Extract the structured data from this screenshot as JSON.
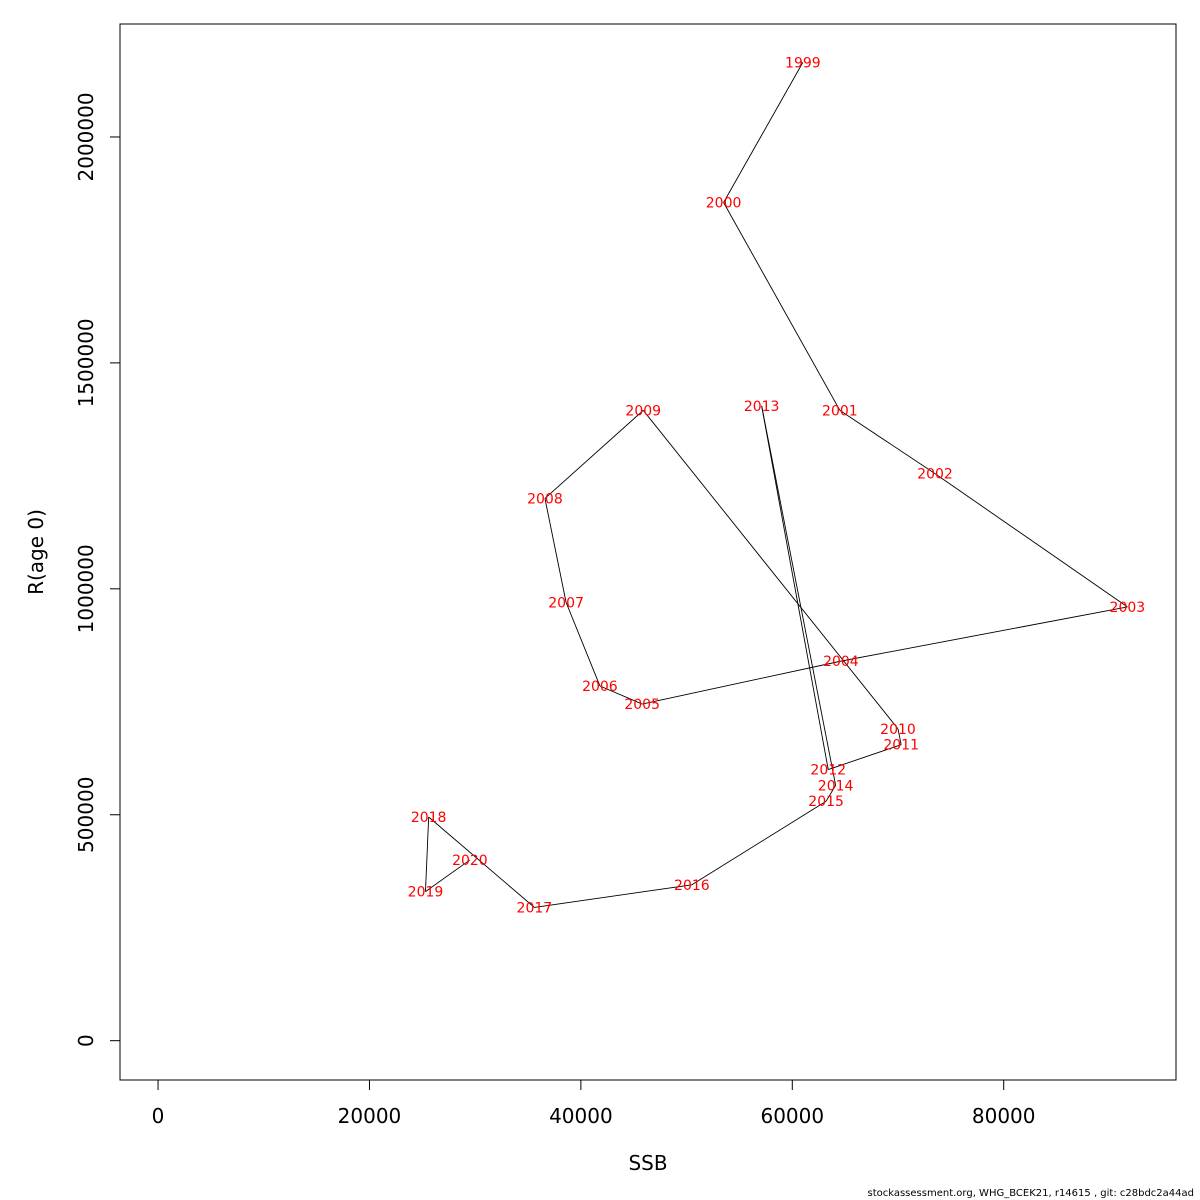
{
  "chart_data": {
    "type": "line",
    "xlabel": "SSB",
    "ylabel": "R(age 0)",
    "xlim": [
      -3600,
      96300
    ],
    "ylim": [
      -87000,
      2250000
    ],
    "x_ticks": [
      0,
      20000,
      40000,
      60000,
      80000
    ],
    "x_tick_labels": [
      "0",
      "20000",
      "40000",
      "60000",
      "80000"
    ],
    "y_ticks": [
      0,
      500000,
      1000000,
      1500000,
      2000000
    ],
    "y_tick_labels": [
      "0",
      "500000",
      "1000000",
      "1500000",
      "2000000"
    ],
    "grid": false,
    "line_color": "#000000",
    "label_color": "#ff0000",
    "points": [
      {
        "label": "1999",
        "x": 61000,
        "y": 2165000
      },
      {
        "label": "2000",
        "x": 53500,
        "y": 1855000
      },
      {
        "label": "2001",
        "x": 64500,
        "y": 1395000
      },
      {
        "label": "2002",
        "x": 73500,
        "y": 1255000
      },
      {
        "label": "2003",
        "x": 91700,
        "y": 960000
      },
      {
        "label": "2004",
        "x": 64600,
        "y": 840000
      },
      {
        "label": "2005",
        "x": 45800,
        "y": 745000
      },
      {
        "label": "2006",
        "x": 41800,
        "y": 785000
      },
      {
        "label": "2007",
        "x": 38600,
        "y": 970000
      },
      {
        "label": "2008",
        "x": 36600,
        "y": 1200000
      },
      {
        "label": "2009",
        "x": 45900,
        "y": 1395000
      },
      {
        "label": "2010",
        "x": 70000,
        "y": 690000
      },
      {
        "label": "2011",
        "x": 70300,
        "y": 655000
      },
      {
        "label": "2012",
        "x": 63400,
        "y": 600000
      },
      {
        "label": "2013",
        "x": 57100,
        "y": 1405000
      },
      {
        "label": "2014",
        "x": 64100,
        "y": 565000
      },
      {
        "label": "2015",
        "x": 63200,
        "y": 530000
      },
      {
        "label": "2016",
        "x": 50500,
        "y": 345000
      },
      {
        "label": "2017",
        "x": 35600,
        "y": 295000
      },
      {
        "label": "2018",
        "x": 25600,
        "y": 495000
      },
      {
        "label": "2019",
        "x": 25300,
        "y": 330000
      },
      {
        "label": "2020",
        "x": 29500,
        "y": 400000
      }
    ]
  },
  "footer": "stockassessment.org, WHG_BCEK21, r14615 , git: c28bdc2a44ad"
}
